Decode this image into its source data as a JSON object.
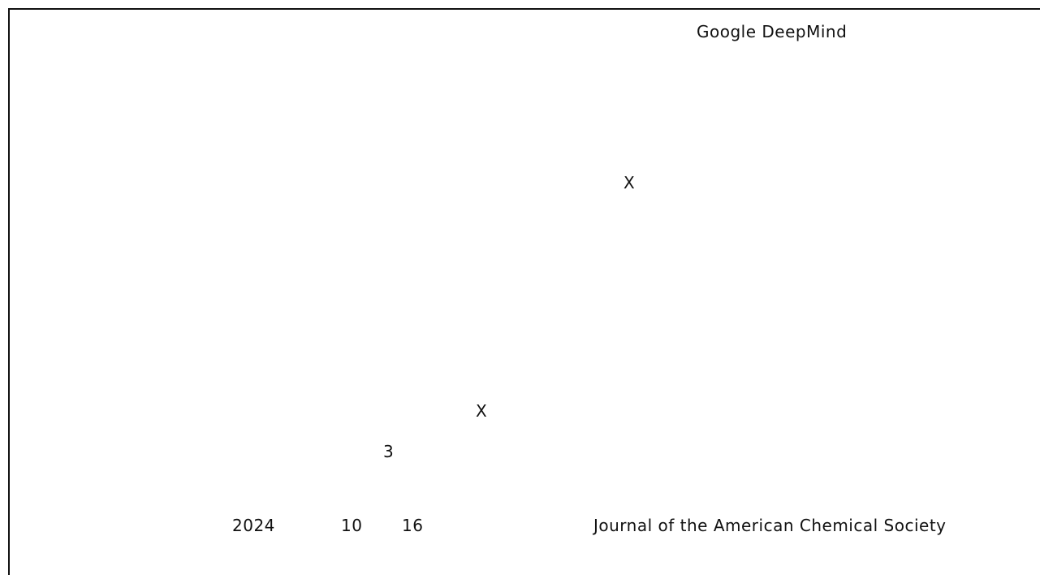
{
  "header": {
    "organization": "Google DeepMind"
  },
  "body": {
    "mark_upper": "X",
    "mark_lower": "X",
    "number": "3"
  },
  "footer": {
    "year": "2024",
    "month": "10",
    "day": "16",
    "journal": "Journal of the American Chemical Society"
  }
}
